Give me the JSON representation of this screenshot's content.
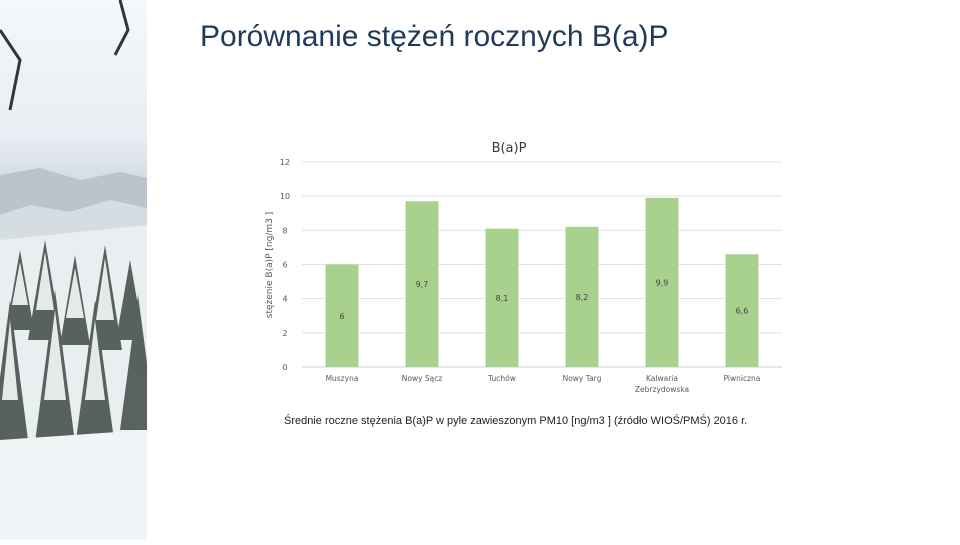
{
  "slide": {
    "title": "Porównanie stężeń rocznych B(a)P",
    "caption": "Średnie roczne stężenia B(a)P w pyle zawieszonym PM10 [ng/m3 ] (źródło WIOŚ/PMŚ) 2016 r."
  },
  "colors": {
    "title": "#1f3a5a",
    "bar": "#a9d18e",
    "grid": "#e3e3e3",
    "axis_text": "#595959"
  },
  "chart_data": {
    "type": "bar",
    "title": "B(a)P",
    "ylabel": "stężenie B(a)P [ng/m3 ]",
    "xlabel": "",
    "categories": [
      [
        "Muszyna"
      ],
      [
        "Nowy Sącz"
      ],
      [
        "Tuchów"
      ],
      [
        "Nowy Targ"
      ],
      [
        "Kalwaria",
        "Zebrzydowska"
      ],
      [
        "Piwniczna"
      ]
    ],
    "values": [
      6,
      9.7,
      8.1,
      8.2,
      9.9,
      6.6
    ],
    "data_labels": [
      "6",
      "9,7",
      "8,1",
      "8,2",
      "9,9",
      "6,6"
    ],
    "ylim": [
      0,
      12
    ],
    "yticks": [
      "0",
      "2",
      "4",
      "6",
      "8",
      "10",
      "12"
    ],
    "grid": true,
    "legend": "none"
  }
}
